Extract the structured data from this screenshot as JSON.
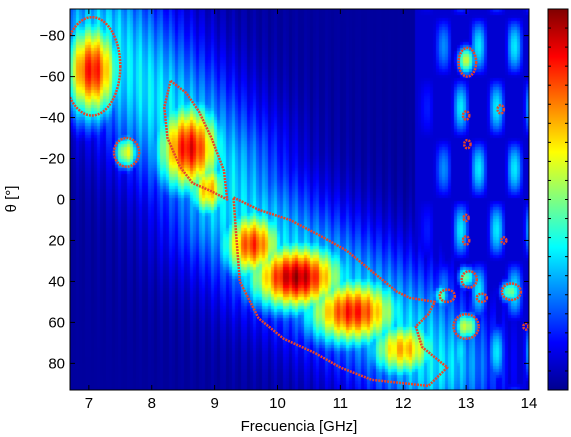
{
  "chart_data": {
    "type": "heatmap",
    "title": "",
    "xlabel": "Frecuencia [GHz]",
    "ylabel": "θ [°]",
    "xlim": [
      6.7,
      14.0
    ],
    "ylim": [
      -93,
      93
    ],
    "y_inverted": true,
    "x_ticks": [
      7,
      8,
      9,
      10,
      11,
      12,
      13,
      14
    ],
    "x_tick_labels": [
      "7",
      "8",
      "9",
      "10",
      "11",
      "12",
      "13",
      "14"
    ],
    "y_ticks": [
      -80,
      -60,
      -40,
      -20,
      0,
      20,
      40,
      60,
      80
    ],
    "y_tick_labels": [
      "−80",
      "−60",
      "−40",
      "−20",
      "0",
      "20",
      "40",
      "60",
      "80"
    ],
    "colormap": "jet",
    "colorbar": true,
    "colorbar_ticks_count": 20,
    "contour_color": "#e8452a",
    "background_color": "#00008f",
    "hotspots": [
      {
        "x": 7.05,
        "y": -63,
        "sx": 0.32,
        "sy": 17,
        "v": 0.86
      },
      {
        "x": 7.6,
        "y": -23,
        "sx": 0.14,
        "sy": 6,
        "v": 0.6
      },
      {
        "x": 8.6,
        "y": -25,
        "sx": 0.38,
        "sy": 16,
        "v": 0.88
      },
      {
        "x": 8.9,
        "y": -5,
        "sx": 0.22,
        "sy": 10,
        "v": 0.7
      },
      {
        "x": 9.6,
        "y": 22,
        "sx": 0.35,
        "sy": 12,
        "v": 0.82
      },
      {
        "x": 10.3,
        "y": 38,
        "sx": 0.55,
        "sy": 12,
        "v": 0.95
      },
      {
        "x": 11.2,
        "y": 55,
        "sx": 0.55,
        "sy": 12,
        "v": 0.85
      },
      {
        "x": 12.0,
        "y": 73,
        "sx": 0.4,
        "sy": 10,
        "v": 0.7
      },
      {
        "x": 13.0,
        "y": -68,
        "sx": 0.1,
        "sy": 5,
        "v": 0.58
      },
      {
        "x": 13.0,
        "y": 62,
        "sx": 0.14,
        "sy": 5,
        "v": 0.58
      },
      {
        "x": 13.0,
        "y": 38,
        "sx": 0.1,
        "sy": 4,
        "v": 0.5
      },
      {
        "x": 13.7,
        "y": 45,
        "sx": 0.12,
        "sy": 4,
        "v": 0.5
      },
      {
        "x": 12.6,
        "y": 47,
        "sx": 0.1,
        "sy": 4,
        "v": 0.45
      }
    ],
    "diagonal_band": [
      [
        7.2,
        -80
      ],
      [
        8.2,
        -45
      ],
      [
        9.0,
        -15
      ],
      [
        9.3,
        5
      ],
      [
        10.0,
        25
      ],
      [
        11.0,
        45
      ],
      [
        12.0,
        65
      ],
      [
        12.5,
        80
      ]
    ],
    "contour_regions": [
      {
        "shape": "ellipse",
        "cx": 7.05,
        "cy": -65,
        "rx": 0.45,
        "ry": 24
      },
      {
        "shape": "ellipse",
        "cx": 7.6,
        "cy": -23,
        "rx": 0.2,
        "ry": 7
      },
      {
        "shape": "polygon",
        "points": [
          [
            8.3,
            -58
          ],
          [
            8.55,
            -52
          ],
          [
            8.75,
            -43
          ],
          [
            8.95,
            -30
          ],
          [
            9.15,
            -14
          ],
          [
            9.2,
            0
          ],
          [
            8.95,
            -4
          ],
          [
            8.65,
            -8
          ],
          [
            8.45,
            -16
          ],
          [
            8.25,
            -30
          ],
          [
            8.2,
            -45
          ]
        ]
      },
      {
        "shape": "polygon",
        "points": [
          [
            9.3,
            -1
          ],
          [
            9.7,
            5
          ],
          [
            10.2,
            10
          ],
          [
            10.7,
            18
          ],
          [
            11.1,
            25
          ],
          [
            11.5,
            35
          ],
          [
            11.9,
            45
          ],
          [
            12.1,
            48
          ],
          [
            12.5,
            50
          ],
          [
            12.4,
            56
          ],
          [
            12.2,
            62
          ],
          [
            12.3,
            72
          ],
          [
            12.7,
            82
          ],
          [
            12.4,
            91
          ],
          [
            11.5,
            88
          ],
          [
            11.0,
            82
          ],
          [
            10.6,
            75
          ],
          [
            10.1,
            68
          ],
          [
            9.7,
            58
          ],
          [
            9.4,
            40
          ],
          [
            9.35,
            20
          ]
        ]
      },
      {
        "shape": "ellipse",
        "cx": 13.02,
        "cy": -67,
        "rx": 0.14,
        "ry": 7
      },
      {
        "shape": "ellipse",
        "cx": 13.0,
        "cy": 62,
        "rx": 0.2,
        "ry": 6
      },
      {
        "shape": "ellipse",
        "cx": 13.05,
        "cy": 39,
        "rx": 0.12,
        "ry": 4
      },
      {
        "shape": "ellipse",
        "cx": 13.72,
        "cy": 45,
        "rx": 0.15,
        "ry": 4
      },
      {
        "shape": "ellipse",
        "cx": 12.7,
        "cy": 47,
        "rx": 0.12,
        "ry": 3
      },
      {
        "shape": "ellipse",
        "cx": 13.25,
        "cy": 48,
        "rx": 0.08,
        "ry": 2
      },
      {
        "shape": "ellipse",
        "cx": 13.55,
        "cy": -44,
        "rx": 0.05,
        "ry": 2
      },
      {
        "shape": "ellipse",
        "cx": 13.0,
        "cy": -41,
        "rx": 0.05,
        "ry": 2
      },
      {
        "shape": "ellipse",
        "cx": 13.02,
        "cy": -27,
        "rx": 0.05,
        "ry": 2
      },
      {
        "shape": "ellipse",
        "cx": 13.0,
        "cy": 9,
        "rx": 0.04,
        "ry": 1.5
      },
      {
        "shape": "ellipse",
        "cx": 13.0,
        "cy": 20,
        "rx": 0.05,
        "ry": 2
      },
      {
        "shape": "ellipse",
        "cx": 13.6,
        "cy": 20,
        "rx": 0.04,
        "ry": 1.5
      },
      {
        "shape": "ellipse",
        "cx": 13.95,
        "cy": 62,
        "rx": 0.04,
        "ry": 1.5
      }
    ]
  }
}
